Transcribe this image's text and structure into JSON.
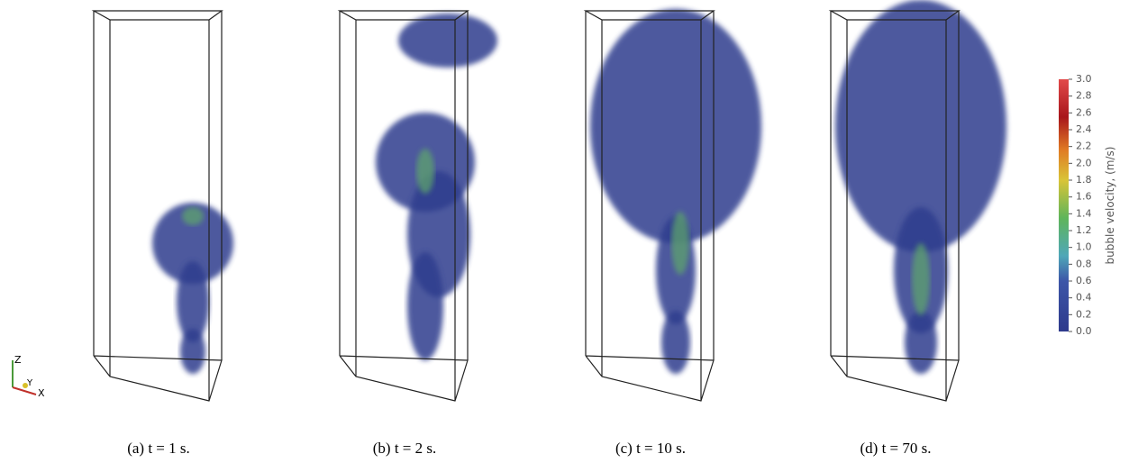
{
  "panels": [
    {
      "caption": "(a) t = 1 s."
    },
    {
      "caption": "(b) t = 2 s."
    },
    {
      "caption": "(c) t = 10 s."
    },
    {
      "caption": "(d) t = 70 s."
    }
  ],
  "axes_triad": {
    "z": "Z",
    "y": "Y",
    "x": "X"
  },
  "colorbar": {
    "label": "bubble velocity, (m/s)",
    "lim": [
      0,
      3
    ],
    "ticks": [
      {
        "value": 0,
        "label": "0.0"
      },
      {
        "value": 0.2,
        "label": "0.2"
      },
      {
        "value": 0.4,
        "label": "0.4"
      },
      {
        "value": 0.6,
        "label": "0.6"
      },
      {
        "value": 0.8,
        "label": "0.8"
      },
      {
        "value": 1,
        "label": "1.0"
      },
      {
        "value": 1.2,
        "label": "1.2"
      },
      {
        "value": 1.4,
        "label": "1.4"
      },
      {
        "value": 1.6,
        "label": "1.6"
      },
      {
        "value": 1.8,
        "label": "1.8"
      },
      {
        "value": 2,
        "label": "2.0"
      },
      {
        "value": 2.2,
        "label": "2.2"
      },
      {
        "value": 2.4,
        "label": "2.4"
      },
      {
        "value": 2.6,
        "label": "2.6"
      },
      {
        "value": 2.8,
        "label": "2.8"
      },
      {
        "value": 3,
        "label": "3.0"
      }
    ]
  }
}
